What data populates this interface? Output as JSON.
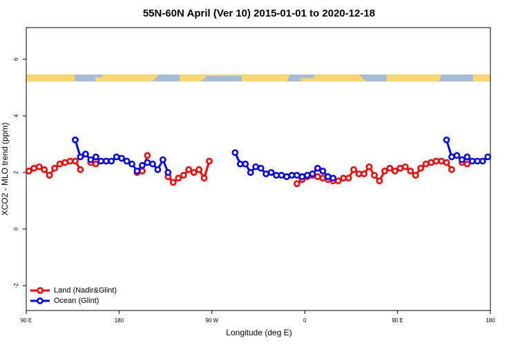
{
  "chart_data": {
    "type": "line",
    "title": "55N-60N April (Ver 10)   2015-01-01 to 2020-12-18",
    "x_label": "Longitude (deg E)",
    "y_label": "XCO2 - MLO trend (ppm)",
    "x": [
      92.5,
      97.5,
      102.5,
      107.5,
      112.5,
      117.5,
      122.5,
      127.5,
      132.5,
      137.5,
      142.5,
      147.5,
      152.5,
      157.5,
      162.5,
      167.5,
      172.5,
      177.5,
      182.5,
      187.5,
      192.5,
      197.5,
      202.5,
      207.5,
      212.5,
      217.5,
      222.5,
      227.5,
      232.5,
      237.5,
      242.5,
      247.5,
      252.5,
      257.5,
      262.5,
      267.5,
      272.5,
      277.5,
      282.5,
      287.5,
      292.5,
      297.5,
      302.5,
      307.5,
      312.5,
      317.5,
      322.5,
      327.5,
      332.5,
      337.5,
      342.5,
      347.5,
      352.5,
      357.5,
      362.5,
      367.5,
      372.5,
      377.5,
      382.5,
      387.5,
      392.5,
      397.5,
      402.5,
      407.5,
      412.5,
      417.5,
      422.5,
      427.5,
      432.5,
      437.5,
      442.5,
      447.5,
      452.5,
      457.5,
      462.5,
      467.5,
      472.5,
      477.5,
      482.5,
      487.5,
      492.5,
      497.5,
      502.5,
      507.5,
      512.5,
      517.5,
      522.5,
      527.5,
      532.5,
      537.5
    ],
    "series": [
      {
        "name": "Land (Nadir&Glint)",
        "color": "#ff0000",
        "values": [
          2.05,
          2.15,
          2.2,
          2.1,
          1.9,
          2.15,
          2.3,
          2.35,
          2.4,
          2.4,
          2.1,
          null,
          2.35,
          2.3,
          null,
          null,
          null,
          null,
          null,
          null,
          null,
          2.0,
          2.05,
          2.6,
          null,
          null,
          null,
          1.85,
          1.65,
          1.8,
          1.9,
          2.1,
          2.0,
          2.1,
          1.8,
          2.4,
          null,
          null,
          null,
          null,
          null,
          null,
          null,
          null,
          null,
          null,
          null,
          null,
          null,
          null,
          null,
          null,
          1.6,
          1.75,
          1.85,
          1.9,
          1.85,
          1.8,
          1.75,
          1.7,
          1.7,
          1.8,
          1.8,
          2.1,
          1.95,
          1.95,
          2.2,
          1.9,
          1.7,
          2.05,
          2.15,
          2.05,
          2.15,
          2.2,
          2.05,
          1.9,
          2.15,
          2.3,
          2.35,
          2.4,
          2.4,
          2.35,
          2.1,
          null,
          2.35,
          2.3,
          null,
          null,
          null,
          null
        ]
      },
      {
        "name": "Ocean (Glint)",
        "color": "#0000ff",
        "values": [
          null,
          null,
          null,
          null,
          null,
          null,
          null,
          null,
          null,
          3.15,
          2.55,
          2.65,
          2.45,
          2.55,
          2.4,
          2.4,
          2.4,
          2.55,
          2.5,
          2.4,
          2.3,
          2.05,
          2.25,
          2.35,
          2.3,
          2.1,
          2.45,
          2.0,
          null,
          null,
          null,
          null,
          null,
          null,
          null,
          null,
          null,
          null,
          null,
          null,
          2.7,
          2.3,
          2.3,
          2.0,
          2.2,
          2.15,
          1.95,
          2.0,
          1.9,
          1.9,
          1.85,
          1.9,
          1.9,
          1.85,
          1.9,
          1.95,
          2.15,
          2.05,
          1.85,
          1.8,
          null,
          null,
          null,
          null,
          null,
          null,
          null,
          null,
          null,
          null,
          null,
          null,
          null,
          null,
          null,
          null,
          null,
          null,
          null,
          null,
          null,
          3.15,
          2.55,
          2.6,
          2.45,
          2.55,
          2.4,
          2.4,
          2.4,
          2.55
        ]
      }
    ],
    "xlim": [
      90,
      540
    ],
    "xticks": [
      {
        "value": 90,
        "label": "90 E"
      },
      180,
      {
        "value": 270,
        "label": "90 W"
      },
      {
        "value": 360,
        "label": "0"
      },
      {
        "value": 450,
        "label": "90 E"
      },
      {
        "value": 540,
        "label": "180"
      }
    ],
    "ylim": [
      -2.88,
      7.12
    ],
    "yticks": [
      -2,
      0,
      2,
      4,
      6
    ],
    "legend": "bottom-left"
  }
}
